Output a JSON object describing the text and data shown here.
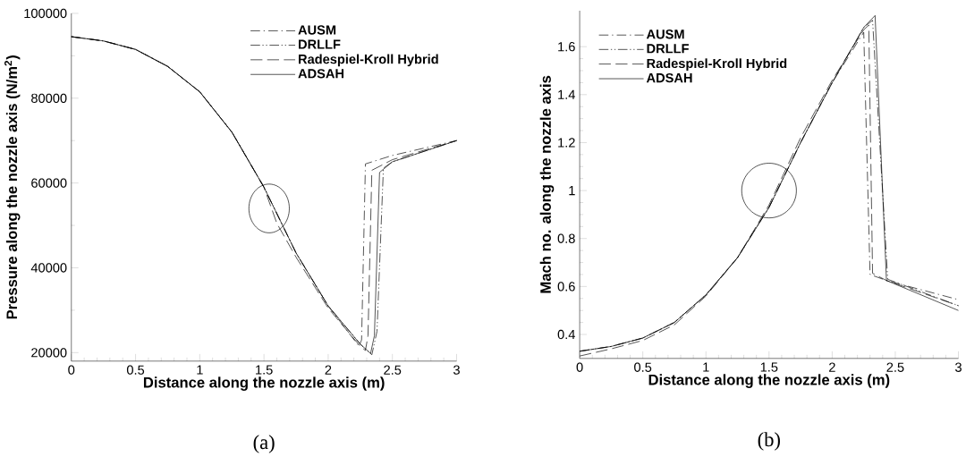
{
  "chart_data": [
    {
      "type": "line",
      "xlabel": "Distance along the nozzle axis (m)",
      "ylabel": "Pressure along the nozzle axis (N/m$^{2}$)",
      "xlim": [
        0,
        3
      ],
      "ylim": [
        18000,
        100000
      ],
      "xticks": [
        0,
        0.5,
        1,
        1.5,
        2,
        2.5,
        3
      ],
      "yticks": [
        20000,
        40000,
        60000,
        80000,
        100000
      ],
      "legend": "top right",
      "annotations": [
        "(a)"
      ],
      "series": [
        {
          "name": "AUSM",
          "color": "#000000",
          "line_style": "dashdot",
          "x": [
            0,
            0.25,
            0.5,
            0.75,
            1,
            1.25,
            1.5,
            1.75,
            2,
            2.24,
            2.26,
            2.29,
            2.5,
            3
          ],
          "values": [
            94500,
            93500,
            91500,
            87500,
            81500,
            72000,
            59000,
            43500,
            31000,
            21500,
            23000,
            64500,
            66500,
            70000
          ]
        },
        {
          "name": "DRLLF",
          "color": "#000000",
          "line_style": "dashdotdot",
          "x": [
            0,
            0.25,
            0.5,
            0.75,
            1,
            1.25,
            1.5,
            1.75,
            2,
            2.25,
            2.34,
            2.38,
            2.43,
            2.5,
            3
          ],
          "values": [
            94500,
            93500,
            91500,
            87500,
            81500,
            72000,
            59000,
            43500,
            31000,
            22000,
            19500,
            25000,
            63500,
            65000,
            70000
          ]
        },
        {
          "name": "Radespiel-Kroll Hybrid",
          "color": "#000000",
          "line_style": "dashed",
          "x": [
            0,
            0.25,
            0.5,
            0.75,
            1,
            1.25,
            1.5,
            1.6,
            1.75,
            2,
            2.25,
            2.29,
            2.31,
            2.34,
            2.5,
            3
          ],
          "values": [
            94500,
            93500,
            91500,
            87500,
            81500,
            72000,
            59000,
            50500,
            42500,
            30500,
            21500,
            20500,
            24000,
            63000,
            65500,
            70000
          ]
        },
        {
          "name": "ADSAH",
          "color": "#000000",
          "line_style": "solid",
          "x": [
            0,
            0.25,
            0.5,
            0.75,
            1,
            1.25,
            1.5,
            1.75,
            2,
            2.25,
            2.33,
            2.36,
            2.4,
            2.5,
            3
          ],
          "values": [
            94500,
            93500,
            91500,
            87500,
            81500,
            72000,
            59000,
            43500,
            31000,
            22000,
            19800,
            24000,
            62500,
            65000,
            70000
          ]
        }
      ]
    },
    {
      "type": "line",
      "xlabel": "Distance along the nozzle axis (m)",
      "ylabel": "Mach no. along the nozzle axis",
      "xlim": [
        0,
        3
      ],
      "ylim": [
        0.3,
        1.75
      ],
      "xticks": [
        0,
        0.5,
        1,
        1.5,
        2,
        2.5,
        3
      ],
      "yticks": [
        0.4,
        0.6,
        0.8,
        1,
        1.2,
        1.4,
        1.6
      ],
      "legend": "top left",
      "annotations": [
        "(b)"
      ],
      "series": [
        {
          "name": "AUSM",
          "color": "#000000",
          "line_style": "dashdot",
          "x": [
            0,
            0.25,
            0.5,
            0.75,
            1,
            1.25,
            1.5,
            1.75,
            2,
            2.25,
            2.3,
            2.43,
            3
          ],
          "values": [
            0.33,
            0.35,
            0.385,
            0.45,
            0.565,
            0.72,
            0.93,
            1.2,
            1.45,
            1.66,
            0.65,
            0.625,
            0.545
          ]
        },
        {
          "name": "DRLLF",
          "color": "#000000",
          "line_style": "dashdotdot",
          "x": [
            0,
            0.25,
            0.5,
            0.75,
            1,
            1.25,
            1.5,
            1.75,
            2,
            2.25,
            2.32,
            2.44,
            3
          ],
          "values": [
            0.33,
            0.35,
            0.385,
            0.45,
            0.565,
            0.72,
            0.93,
            1.2,
            1.45,
            1.68,
            1.71,
            0.63,
            0.52
          ]
        },
        {
          "name": "Radespiel-Kroll Hybrid",
          "color": "#000000",
          "line_style": "dashed",
          "x": [
            0,
            0.25,
            0.5,
            0.75,
            1,
            1.25,
            1.5,
            1.75,
            2,
            2.25,
            2.29,
            2.32,
            2.43,
            3
          ],
          "values": [
            0.31,
            0.34,
            0.375,
            0.44,
            0.56,
            0.72,
            0.94,
            1.22,
            1.46,
            1.67,
            1.69,
            0.655,
            0.625,
            0.52
          ]
        },
        {
          "name": "ADSAH",
          "color": "#000000",
          "line_style": "solid",
          "x": [
            0,
            0.25,
            0.5,
            0.75,
            1,
            1.25,
            1.5,
            1.75,
            2,
            2.25,
            2.34,
            2.43,
            3
          ],
          "values": [
            0.33,
            0.35,
            0.385,
            0.45,
            0.565,
            0.72,
            0.93,
            1.2,
            1.45,
            1.68,
            1.73,
            0.625,
            0.5
          ]
        }
      ]
    }
  ]
}
